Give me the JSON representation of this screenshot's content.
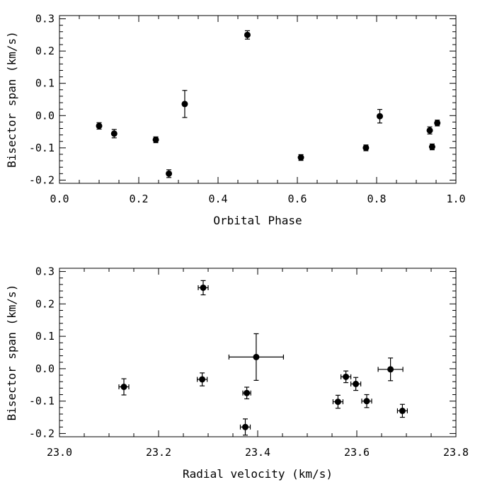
{
  "chart_data": [
    {
      "type": "scatter",
      "xlabel": "Orbital Phase",
      "ylabel": "Bisector span (km/s)",
      "xlim": [
        0.0,
        1.0
      ],
      "ylim": [
        -0.21,
        0.31
      ],
      "x_ticks": [
        0.0,
        0.2,
        0.4,
        0.6,
        0.8,
        1.0
      ],
      "x_tick_labels": [
        "0.0",
        "0.2",
        "0.4",
        "0.6",
        "0.8",
        "1.0"
      ],
      "y_ticks": [
        -0.2,
        -0.1,
        0.0,
        0.1,
        0.2,
        0.3
      ],
      "y_tick_labels": [
        "-0.2",
        "-0.1",
        "0.0",
        "0.1",
        "0.2",
        "0.3"
      ],
      "grid": false,
      "points": [
        {
          "x": 0.1,
          "y": -0.032,
          "yerr": 0.01
        },
        {
          "x": 0.138,
          "y": -0.056,
          "yerr": 0.013
        },
        {
          "x": 0.243,
          "y": -0.075,
          "yerr": 0.009
        },
        {
          "x": 0.276,
          "y": -0.18,
          "yerr": 0.012
        },
        {
          "x": 0.316,
          "y": 0.036,
          "yerr": 0.042
        },
        {
          "x": 0.474,
          "y": 0.25,
          "yerr": 0.013
        },
        {
          "x": 0.609,
          "y": -0.13,
          "yerr": 0.009
        },
        {
          "x": 0.773,
          "y": -0.1,
          "yerr": 0.009
        },
        {
          "x": 0.808,
          "y": -0.002,
          "yerr": 0.021
        },
        {
          "x": 0.934,
          "y": -0.046,
          "yerr": 0.011
        },
        {
          "x": 0.94,
          "y": -0.097,
          "yerr": 0.009
        },
        {
          "x": 0.953,
          "y": -0.023,
          "yerr": 0.009
        }
      ]
    },
    {
      "type": "scatter",
      "xlabel": "Radial velocity (km/s)",
      "ylabel": "Bisector span (km/s)",
      "xlim": [
        23.0,
        23.8
      ],
      "ylim": [
        -0.21,
        0.31
      ],
      "x_ticks": [
        23.0,
        23.2,
        23.4,
        23.6,
        23.8
      ],
      "x_tick_labels": [
        "23.0",
        "23.2",
        "23.4",
        "23.6",
        "23.8"
      ],
      "y_ticks": [
        -0.2,
        -0.1,
        0.0,
        0.1,
        0.2,
        0.3
      ],
      "y_tick_labels": [
        "-0.2",
        "-0.1",
        "0.0",
        "0.1",
        "0.2",
        "0.3"
      ],
      "grid": false,
      "points": [
        {
          "x": 23.13,
          "y": -0.056,
          "xerr": 0.01,
          "yerr": 0.025
        },
        {
          "x": 23.29,
          "y": 0.25,
          "xerr": 0.01,
          "yerr": 0.022
        },
        {
          "x": 23.288,
          "y": -0.033,
          "xerr": 0.01,
          "yerr": 0.02
        },
        {
          "x": 23.378,
          "y": -0.075,
          "xerr": 0.008,
          "yerr": 0.018
        },
        {
          "x": 23.375,
          "y": -0.18,
          "xerr": 0.01,
          "yerr": 0.025
        },
        {
          "x": 23.397,
          "y": 0.036,
          "xerr": 0.055,
          "yerr": 0.072
        },
        {
          "x": 23.578,
          "y": -0.025,
          "xerr": 0.01,
          "yerr": 0.018
        },
        {
          "x": 23.598,
          "y": -0.047,
          "xerr": 0.01,
          "yerr": 0.02
        },
        {
          "x": 23.562,
          "y": -0.102,
          "xerr": 0.01,
          "yerr": 0.02
        },
        {
          "x": 23.62,
          "y": -0.1,
          "xerr": 0.01,
          "yerr": 0.02
        },
        {
          "x": 23.668,
          "y": -0.002,
          "xerr": 0.025,
          "yerr": 0.035
        },
        {
          "x": 23.692,
          "y": -0.13,
          "xerr": 0.01,
          "yerr": 0.02
        }
      ]
    }
  ]
}
